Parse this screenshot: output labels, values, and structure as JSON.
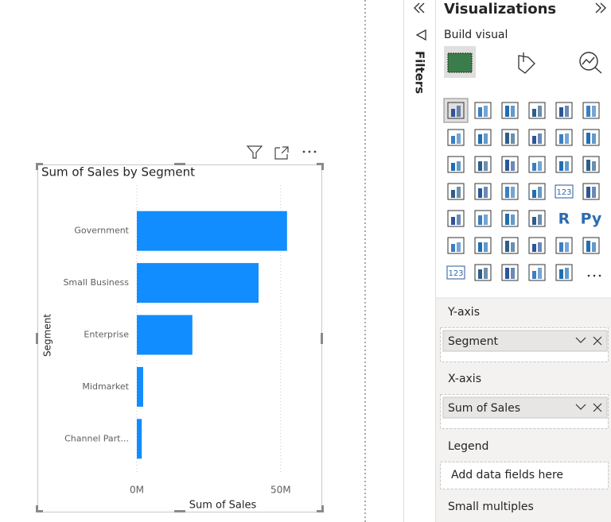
{
  "chart_data": {
    "type": "hbar",
    "title": "Sum of Sales by Segment",
    "categories": [
      "Government",
      "Small Business",
      "Enterprise",
      "Midmarket",
      "Channel Part..."
    ],
    "values": [
      52200000,
      42300000,
      19300000,
      2200000,
      1700000
    ],
    "color": "#118dff",
    "x_label": "Sum of Sales",
    "y_label": "Segment",
    "xlim": [
      0,
      60000000
    ],
    "xticks": [
      {
        "value": 0,
        "label": "0M"
      },
      {
        "value": 50000000,
        "label": "50M"
      }
    ],
    "grid": true
  },
  "filters_pane": {
    "title": "Filters"
  },
  "visualizations_pane": {
    "title": "Visualizations",
    "subtitle": "Build visual",
    "icon_labels": [
      "123",
      "R",
      "Py",
      "123"
    ],
    "wells": [
      {
        "label": "Y-axis",
        "field": "Segment"
      },
      {
        "label": "X-axis",
        "field": "Sum of Sales"
      },
      {
        "label": "Legend",
        "placeholder": "Add data fields here"
      },
      {
        "label": "Small multiples"
      }
    ]
  }
}
